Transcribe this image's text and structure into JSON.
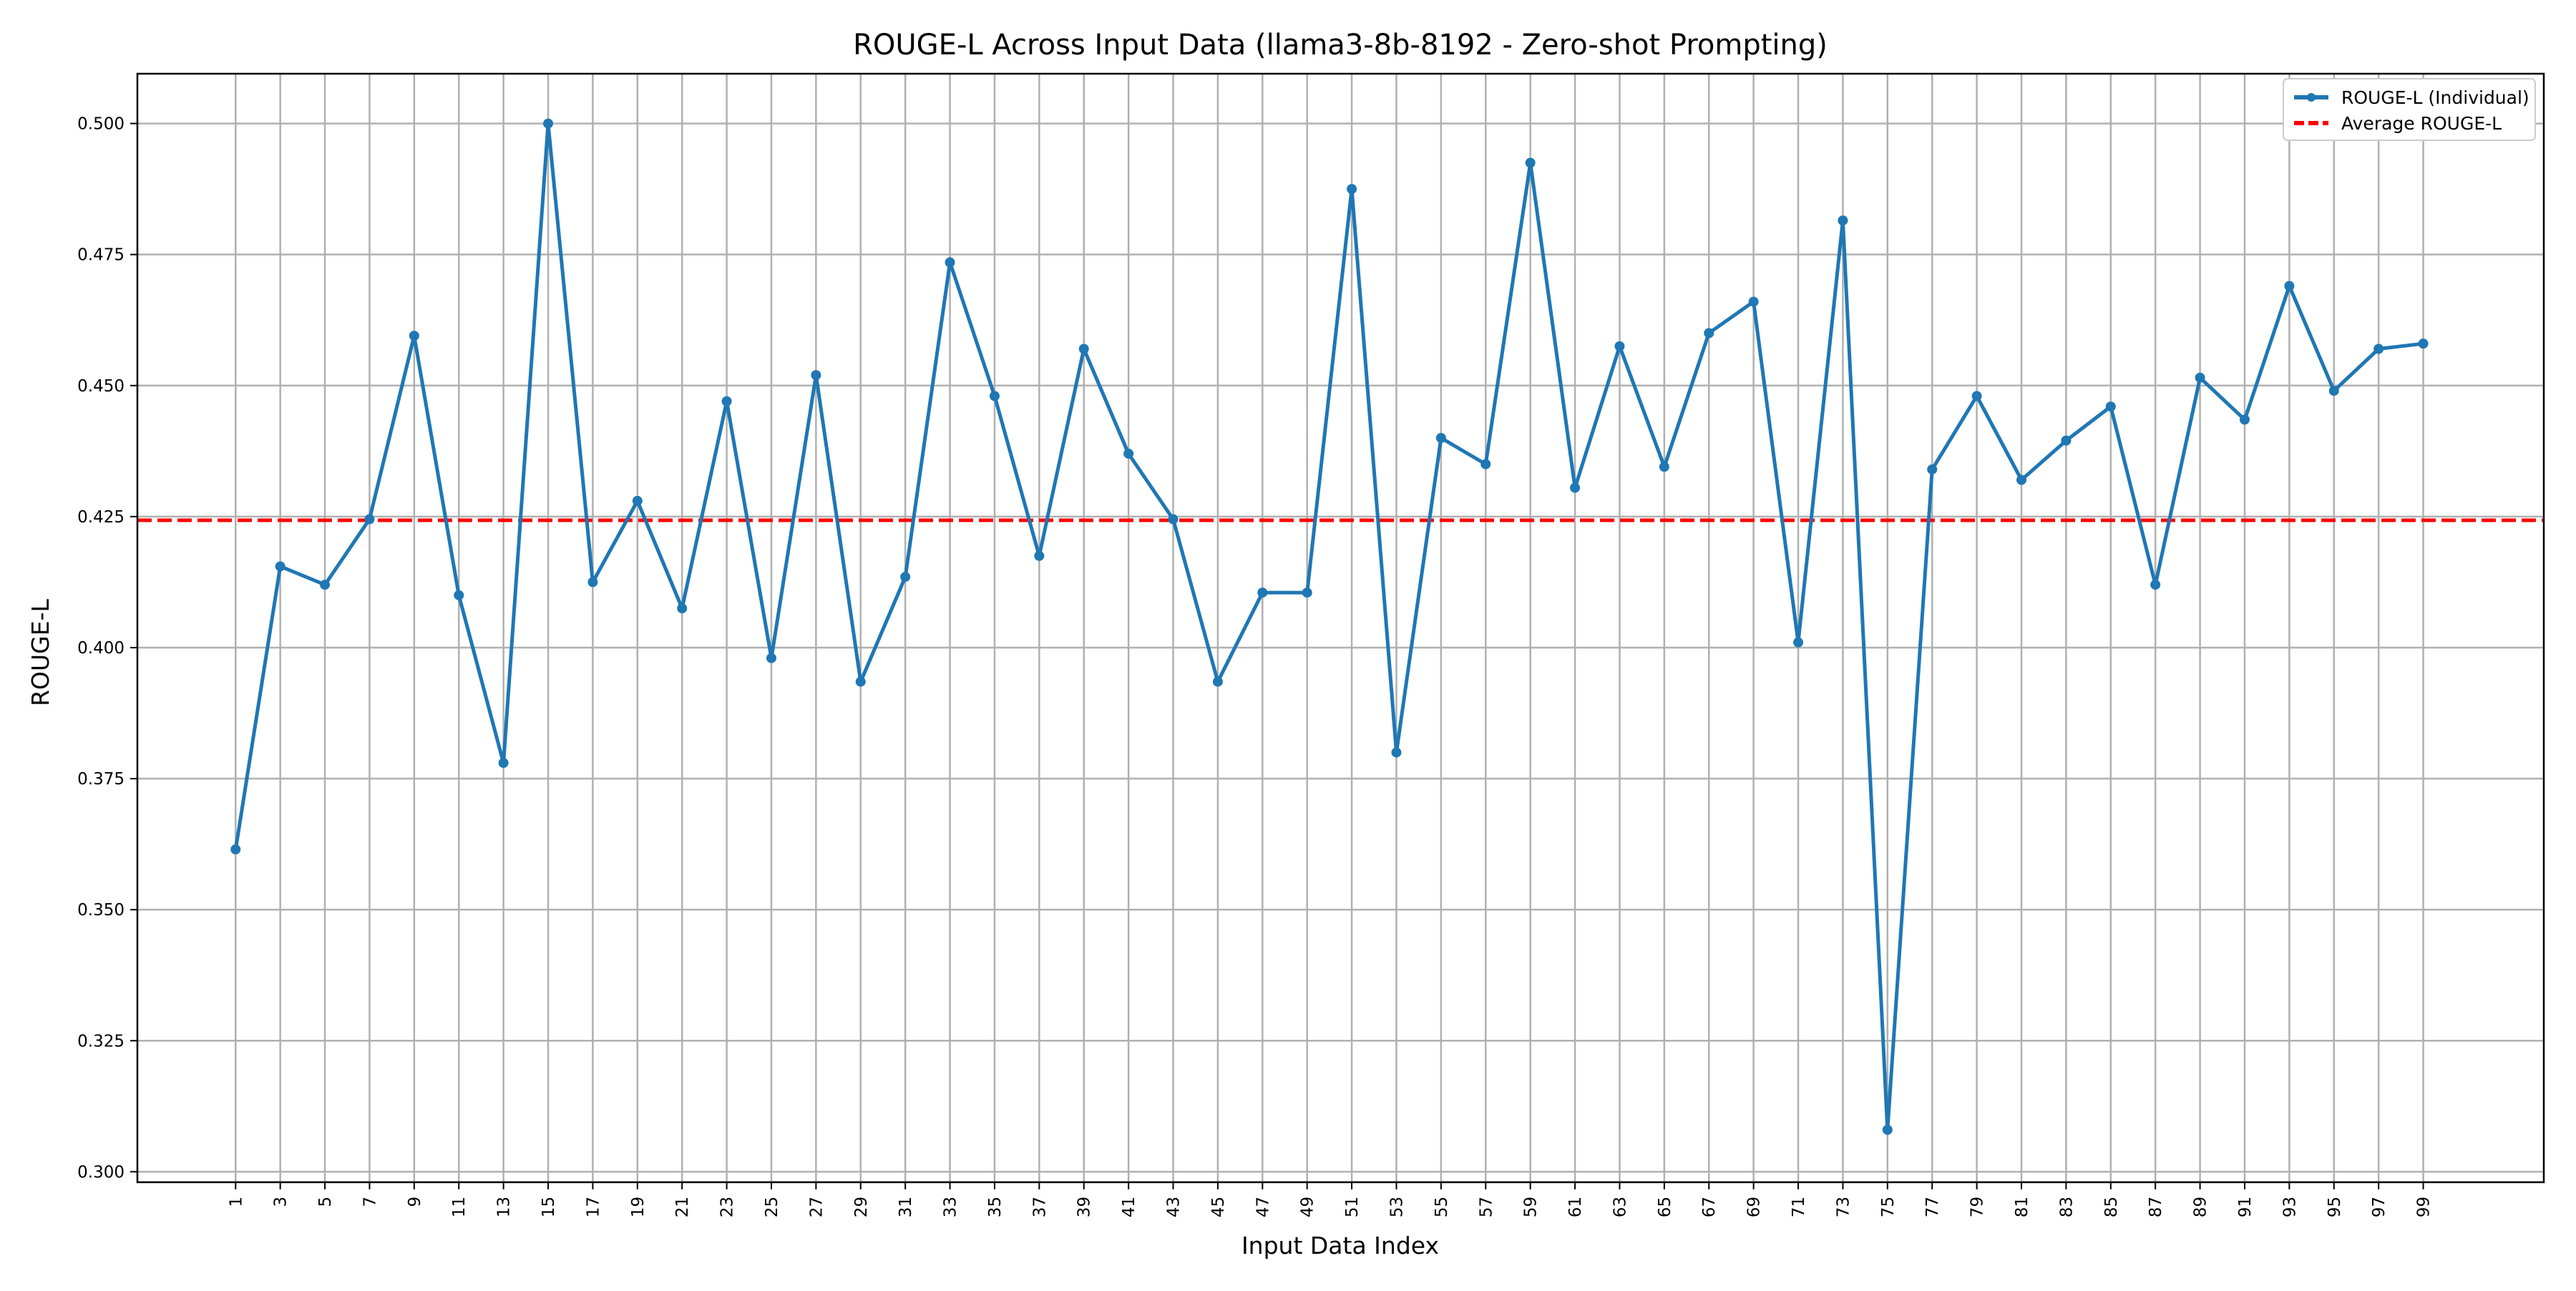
{
  "chart_data": {
    "type": "line",
    "title": "ROUGE-L Across Input Data (llama3-8b-8192 - Zero-shot Prompting)",
    "xlabel": "Input Data Index",
    "ylabel": "ROUGE-L",
    "xlim": [
      -3.4,
      104.4
    ],
    "ylim": [
      0.298,
      0.5095
    ],
    "grid": true,
    "legend_position": "top-right",
    "x_ticks": [
      "1",
      "3",
      "5",
      "7",
      "9",
      "11",
      "13",
      "15",
      "17",
      "19",
      "21",
      "23",
      "25",
      "27",
      "29",
      "31",
      "33",
      "35",
      "37",
      "39",
      "41",
      "43",
      "45",
      "47",
      "49",
      "51",
      "53",
      "55",
      "57",
      "59",
      "61",
      "63",
      "65",
      "67",
      "69",
      "71",
      "73",
      "75",
      "77",
      "79",
      "81",
      "83",
      "85",
      "87",
      "89",
      "91",
      "93",
      "95",
      "97",
      "99"
    ],
    "y_ticks": [
      "0.300",
      "0.325",
      "0.350",
      "0.375",
      "0.400",
      "0.425",
      "0.450",
      "0.475",
      "0.500"
    ],
    "x": [
      1,
      3,
      5,
      7,
      9,
      11,
      13,
      15,
      17,
      19,
      21,
      23,
      25,
      27,
      29,
      31,
      33,
      35,
      37,
      39,
      41,
      43,
      45,
      47,
      49,
      51,
      53,
      55,
      57,
      59,
      61,
      63,
      65,
      67,
      69,
      71,
      73,
      75,
      77,
      79,
      81,
      83,
      85,
      87,
      89,
      91,
      93,
      95,
      97,
      99
    ],
    "series": [
      {
        "name": "ROUGE-L (Individual)",
        "color": "#1f77b4",
        "style": "solid-with-markers",
        "values": [
          0.3615,
          0.4155,
          0.412,
          0.4245,
          0.4595,
          0.41,
          0.378,
          0.5,
          0.4125,
          0.428,
          0.4075,
          0.447,
          0.398,
          0.452,
          0.3935,
          0.4135,
          0.4735,
          0.448,
          0.4175,
          0.457,
          0.437,
          0.4245,
          0.3935,
          0.4105,
          0.4105,
          0.4875,
          0.38,
          0.44,
          0.435,
          0.4925,
          0.4305,
          0.4575,
          0.4345,
          0.46,
          0.466,
          0.401,
          0.4815,
          0.308,
          0.434,
          0.448,
          0.432,
          0.4395,
          0.446,
          0.412,
          0.4515,
          0.4435,
          0.469,
          0.449,
          0.457,
          0.458
        ]
      },
      {
        "name": "Average ROUGE-L",
        "color": "#ff0000",
        "style": "dashed",
        "value": 0.4243
      }
    ]
  }
}
